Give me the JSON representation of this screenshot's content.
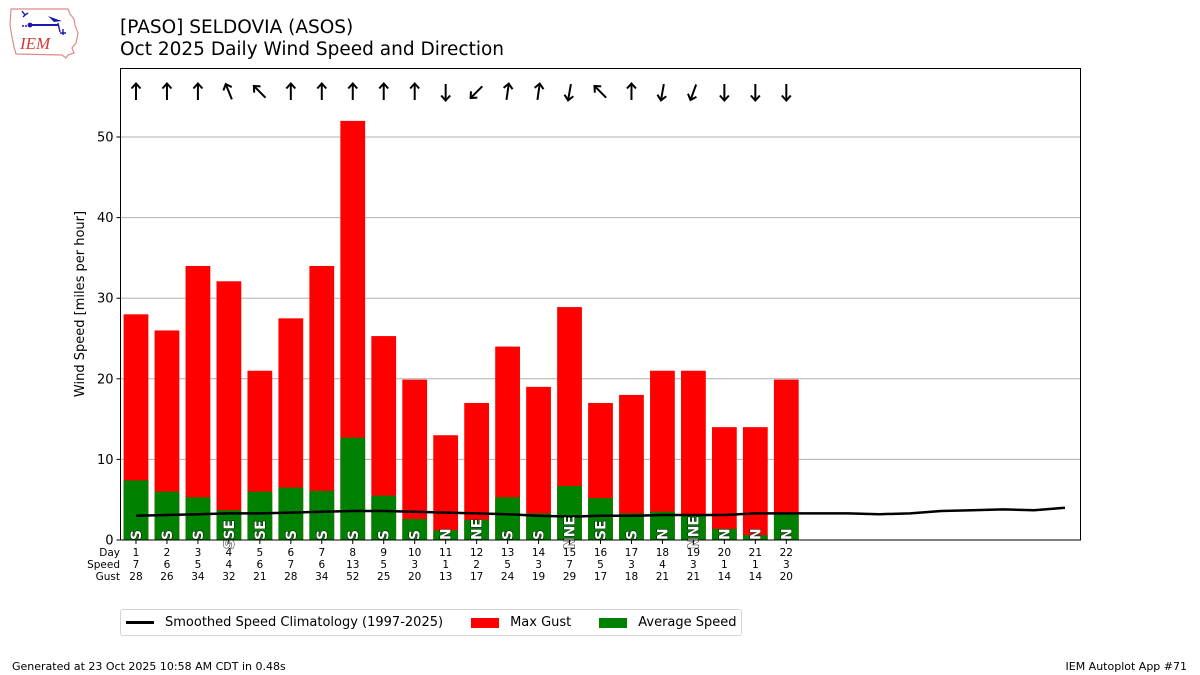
{
  "header": {
    "logo_text": "IEM",
    "title_line1": "[PASO] SELDOVIA (ASOS)",
    "title_line2": "Oct 2025 Daily Wind Speed and Direction"
  },
  "footer": {
    "generated": "Generated at 23 Oct 2025 10:58 AM CDT in 0.48s",
    "app": "IEM Autoplot App #71"
  },
  "legend": {
    "items": [
      {
        "label": "Smoothed Speed Climatology (1997-2025)",
        "kind": "line",
        "color": "#000000"
      },
      {
        "label": "Max Gust",
        "kind": "bar",
        "color": "#ff0000"
      },
      {
        "label": "Average Speed",
        "kind": "bar",
        "color": "#008000"
      }
    ]
  },
  "chart_data": {
    "type": "bar",
    "title": "[PASO] SELDOVIA (ASOS) Oct 2025 Daily Wind Speed and Direction",
    "xlabel": "",
    "ylabel": "Wind Speed [miles per hour]",
    "ylim": [
      0,
      58.5
    ],
    "xlim": [
      0.5,
      31.5
    ],
    "yticks": [
      0,
      10,
      20,
      30,
      40,
      50
    ],
    "grid": "y",
    "legend_position": "below-left",
    "table_row_labels": [
      "Day",
      "Speed",
      "Gust"
    ],
    "days": [
      1,
      2,
      3,
      4,
      5,
      6,
      7,
      8,
      9,
      10,
      11,
      12,
      13,
      14,
      15,
      16,
      17,
      18,
      19,
      20,
      21,
      22
    ],
    "speed_rounded": [
      7,
      6,
      5,
      4,
      6,
      7,
      6,
      13,
      5,
      3,
      1,
      2,
      5,
      3,
      7,
      5,
      3,
      4,
      3,
      1,
      1,
      3
    ],
    "gust_rounded": [
      28,
      26,
      34,
      32,
      21,
      28,
      34,
      52,
      25,
      20,
      13,
      17,
      24,
      19,
      29,
      17,
      18,
      21,
      21,
      14,
      14,
      20
    ],
    "directions": [
      "S",
      "S",
      "S",
      "SSE",
      "SE",
      "S",
      "S",
      "S",
      "S",
      "S",
      "N",
      "NE",
      "S",
      "S",
      "NNE",
      "SE",
      "S",
      "N",
      "NNE",
      "N",
      "N",
      "N"
    ],
    "arrow_angles_deg": [
      0,
      0,
      0,
      -22,
      -45,
      0,
      0,
      0,
      0,
      0,
      180,
      225,
      8,
      8,
      190,
      -45,
      0,
      190,
      200,
      180,
      180,
      180
    ],
    "series": [
      {
        "name": "Max Gust",
        "color": "#ff0000",
        "values": [
          28,
          26,
          34,
          32.1,
          21,
          27.5,
          34,
          52,
          25.3,
          19.9,
          13,
          17,
          24,
          19,
          28.9,
          17,
          18,
          21,
          21,
          14,
          14,
          19.9
        ]
      },
      {
        "name": "Average Speed",
        "color": "#008000",
        "values": [
          7.4,
          6.0,
          5.3,
          3.7,
          6.0,
          6.5,
          6.1,
          12.7,
          5.5,
          2.6,
          1.2,
          2.5,
          5.3,
          3.3,
          6.7,
          5.2,
          3.3,
          3.5,
          3.2,
          1.4,
          0.6,
          3.3
        ]
      },
      {
        "name": "Smoothed Speed Climatology (1997-2025)",
        "color": "#000000",
        "type": "line",
        "x": [
          1,
          2,
          3,
          4,
          5,
          6,
          7,
          8,
          9,
          10,
          11,
          12,
          13,
          14,
          15,
          16,
          17,
          18,
          19,
          20,
          21,
          22,
          23,
          24,
          25,
          26,
          27,
          28,
          29,
          30,
          31
        ],
        "values": [
          3.0,
          3.1,
          3.2,
          3.3,
          3.3,
          3.4,
          3.5,
          3.6,
          3.6,
          3.5,
          3.4,
          3.3,
          3.2,
          3.0,
          2.9,
          3.0,
          3.0,
          3.1,
          3.1,
          3.1,
          3.3,
          3.3,
          3.3,
          3.3,
          3.2,
          3.3,
          3.6,
          3.7,
          3.8,
          3.7,
          4.0
        ]
      }
    ]
  }
}
